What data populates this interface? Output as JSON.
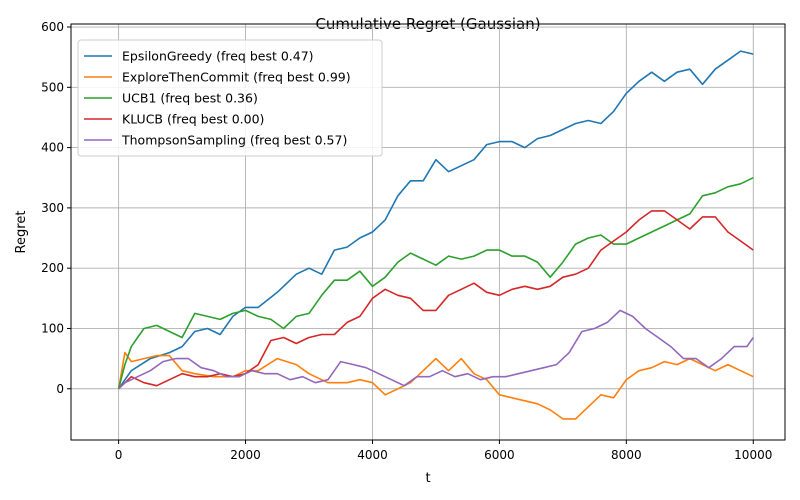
{
  "chart_data": {
    "type": "line",
    "title": "Cumulative Regret (Gaussian)",
    "xlabel": "t",
    "ylabel": "Regret",
    "xlim": [
      -750,
      10500
    ],
    "ylim": [
      -85,
      605
    ],
    "xticks": [
      0,
      2000,
      4000,
      6000,
      8000,
      10000
    ],
    "yticks": [
      0,
      100,
      200,
      300,
      400,
      500,
      600
    ],
    "grid": true,
    "legend_position": "top-left",
    "series": [
      {
        "name": "EpsilonGreedy (freq best 0.47)",
        "color": "#1f77b4",
        "x": [
          0,
          200,
          500,
          800,
          1000,
          1200,
          1400,
          1600,
          1800,
          2000,
          2200,
          2500,
          2800,
          3000,
          3200,
          3400,
          3600,
          3800,
          4000,
          4200,
          4400,
          4600,
          4800,
          5000,
          5200,
          5400,
          5600,
          5800,
          6000,
          6200,
          6400,
          6600,
          6800,
          7000,
          7200,
          7400,
          7600,
          7800,
          8000,
          8200,
          8400,
          8600,
          8800,
          9000,
          9200,
          9400,
          9600,
          9800,
          10000
        ],
        "y": [
          0,
          30,
          50,
          60,
          70,
          95,
          100,
          90,
          120,
          135,
          135,
          160,
          190,
          200,
          190,
          230,
          235,
          250,
          260,
          280,
          320,
          345,
          345,
          380,
          360,
          370,
          380,
          405,
          410,
          410,
          400,
          415,
          420,
          430,
          440,
          445,
          440,
          460,
          490,
          510,
          525,
          510,
          525,
          530,
          505,
          530,
          545,
          560,
          555
        ]
      },
      {
        "name": "ExploreThenCommit (freq best 0.99)",
        "color": "#ff7f0e",
        "x": [
          0,
          100,
          200,
          400,
          600,
          800,
          1000,
          1200,
          1500,
          1800,
          2000,
          2200,
          2500,
          2800,
          3000,
          3300,
          3600,
          3800,
          4000,
          4200,
          4400,
          4600,
          4800,
          5000,
          5200,
          5400,
          5600,
          5800,
          6000,
          6200,
          6400,
          6600,
          6800,
          7000,
          7200,
          7400,
          7600,
          7800,
          8000,
          8200,
          8400,
          8600,
          8800,
          9000,
          9200,
          9400,
          9600,
          9800,
          10000
        ],
        "y": [
          0,
          60,
          45,
          50,
          55,
          55,
          30,
          25,
          20,
          20,
          30,
          30,
          50,
          40,
          25,
          10,
          10,
          15,
          10,
          -10,
          0,
          10,
          30,
          50,
          30,
          50,
          25,
          15,
          -10,
          -15,
          -20,
          -25,
          -35,
          -50,
          -50,
          -30,
          -10,
          -15,
          15,
          30,
          35,
          45,
          40,
          50,
          40,
          30,
          40,
          30,
          20
        ]
      },
      {
        "name": "UCB1 (freq best 0.36)",
        "color": "#2ca02c",
        "x": [
          0,
          100,
          200,
          300,
          400,
          600,
          800,
          1000,
          1200,
          1400,
          1600,
          1800,
          2000,
          2200,
          2400,
          2600,
          2800,
          3000,
          3200,
          3400,
          3600,
          3800,
          4000,
          4200,
          4400,
          4600,
          4800,
          5000,
          5200,
          5400,
          5600,
          5800,
          6000,
          6200,
          6400,
          6600,
          6800,
          7000,
          7200,
          7400,
          7600,
          7800,
          8000,
          8200,
          8400,
          8600,
          8800,
          9000,
          9200,
          9400,
          9600,
          9800,
          10000
        ],
        "y": [
          0,
          40,
          70,
          85,
          100,
          105,
          95,
          85,
          125,
          120,
          115,
          125,
          130,
          120,
          115,
          100,
          120,
          125,
          155,
          180,
          180,
          195,
          170,
          185,
          210,
          225,
          215,
          205,
          220,
          215,
          220,
          230,
          230,
          220,
          220,
          210,
          185,
          210,
          240,
          250,
          255,
          240,
          240,
          250,
          260,
          270,
          280,
          290,
          320,
          325,
          335,
          340,
          350
        ]
      },
      {
        "name": "KLUCB (freq best 0.00)",
        "color": "#d62728",
        "x": [
          0,
          200,
          400,
          600,
          800,
          1000,
          1200,
          1400,
          1600,
          1800,
          2000,
          2200,
          2400,
          2600,
          2800,
          3000,
          3200,
          3400,
          3600,
          3800,
          4000,
          4200,
          4400,
          4600,
          4800,
          5000,
          5200,
          5400,
          5600,
          5800,
          6000,
          6200,
          6400,
          6600,
          6800,
          7000,
          7200,
          7400,
          7600,
          7800,
          8000,
          8200,
          8400,
          8600,
          8800,
          9000,
          9200,
          9400,
          9600,
          9800,
          10000
        ],
        "y": [
          0,
          20,
          10,
          5,
          15,
          25,
          20,
          20,
          25,
          20,
          25,
          40,
          80,
          85,
          75,
          85,
          90,
          90,
          110,
          120,
          150,
          165,
          155,
          150,
          130,
          130,
          155,
          165,
          175,
          160,
          155,
          165,
          170,
          165,
          170,
          185,
          190,
          200,
          230,
          245,
          260,
          280,
          295,
          295,
          280,
          265,
          285,
          285,
          260,
          245,
          230
        ]
      },
      {
        "name": "ThompsonSampling (freq best 0.57)",
        "color": "#9467bd",
        "x": [
          0,
          100,
          300,
          500,
          700,
          900,
          1100,
          1300,
          1500,
          1700,
          1900,
          2100,
          2300,
          2500,
          2700,
          2900,
          3100,
          3300,
          3500,
          3700,
          3900,
          4100,
          4300,
          4500,
          4700,
          4900,
          5100,
          5300,
          5500,
          5700,
          5900,
          6100,
          6300,
          6500,
          6700,
          6900,
          7100,
          7300,
          7500,
          7700,
          7900,
          8100,
          8300,
          8500,
          8700,
          8900,
          9100,
          9300,
          9500,
          9700,
          9900,
          10000
        ],
        "y": [
          0,
          10,
          20,
          30,
          45,
          50,
          50,
          35,
          30,
          20,
          20,
          30,
          25,
          25,
          15,
          20,
          10,
          15,
          45,
          40,
          35,
          25,
          15,
          5,
          20,
          20,
          30,
          20,
          25,
          15,
          20,
          20,
          25,
          30,
          35,
          40,
          60,
          95,
          100,
          110,
          130,
          120,
          100,
          85,
          70,
          50,
          50,
          35,
          50,
          70,
          70,
          85
        ]
      }
    ]
  }
}
